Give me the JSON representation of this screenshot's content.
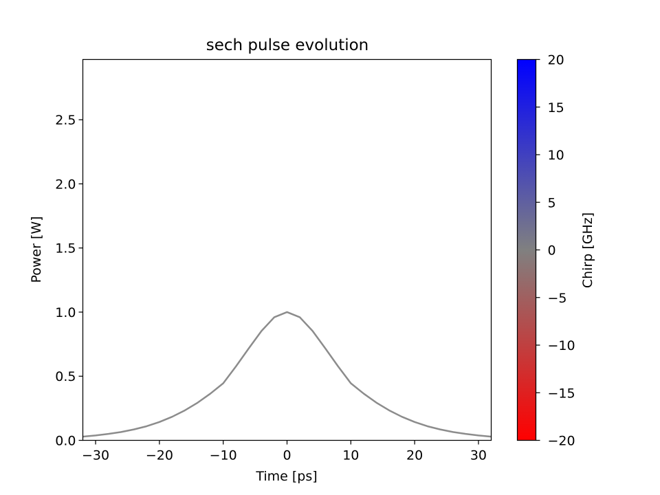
{
  "chart_data": {
    "type": "line",
    "title": "sech pulse evolution",
    "xlabel": "Time [ps]",
    "ylabel": "Power [W]",
    "xlim": [
      -32,
      32
    ],
    "ylim": [
      0,
      2.97
    ],
    "x_ticks": [
      -30,
      -20,
      -10,
      0,
      10,
      20,
      30
    ],
    "x_tick_labels": [
      "−30",
      "−20",
      "−10",
      "0",
      "10",
      "20",
      "30"
    ],
    "y_ticks": [
      0.0,
      0.5,
      1.0,
      1.5,
      2.0,
      2.5
    ],
    "y_tick_labels": [
      "0.0",
      "0.5",
      "1.0",
      "1.5",
      "2.0",
      "2.5"
    ],
    "grid": false,
    "series": [
      {
        "line_color": "#8c8c8c",
        "x": [
          -32,
          -30,
          -28,
          -26,
          -24,
          -22,
          -20,
          -18,
          -16,
          -14,
          -12,
          -10,
          -8,
          -6,
          -4,
          -2,
          0,
          2,
          4,
          6,
          8,
          10,
          12,
          14,
          16,
          18,
          20,
          22,
          24,
          26,
          28,
          30,
          32
        ],
        "y": [
          0.029,
          0.038,
          0.05,
          0.065,
          0.085,
          0.11,
          0.143,
          0.184,
          0.234,
          0.294,
          0.365,
          0.445,
          0.577,
          0.717,
          0.853,
          0.96,
          1.0,
          0.96,
          0.853,
          0.717,
          0.577,
          0.445,
          0.365,
          0.294,
          0.234,
          0.184,
          0.143,
          0.11,
          0.085,
          0.065,
          0.05,
          0.038,
          0.029
        ]
      }
    ],
    "colorbar": {
      "label": "Chirp [GHz]",
      "range": [
        -20,
        20
      ],
      "ticks": [
        -20,
        -15,
        -10,
        -5,
        0,
        5,
        10,
        15,
        20
      ],
      "tick_labels": [
        "−20",
        "−15",
        "−10",
        "−5",
        "0",
        "5",
        "10",
        "15",
        "20"
      ],
      "colors": {
        "min": "#ff0000",
        "mid": "#808080",
        "max": "#0000ff"
      }
    }
  }
}
